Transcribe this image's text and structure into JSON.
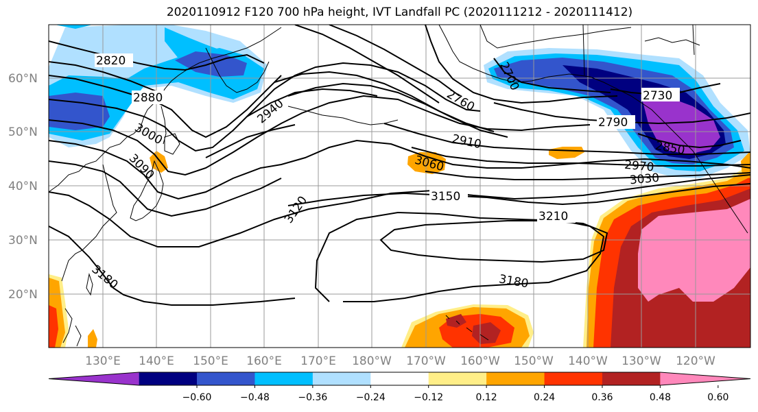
{
  "title": "2020110912 F120 700 hPa height, IVT Landfall PC (2020111212 - 2020111412)",
  "lat_ticks": [
    "60°N",
    "50°N",
    "40°N",
    "30°N",
    "20°N"
  ],
  "lon_ticks": [
    "130°E",
    "140°E",
    "150°E",
    "160°E",
    "170°E",
    "180°W",
    "170°W",
    "160°W",
    "150°W",
    "140°W",
    "130°W",
    "120°W"
  ],
  "colorbar": {
    "colors": [
      "#9933cc",
      "#000080",
      "#3355cc",
      "#00bfff",
      "#b0e0ff",
      "#ffffff",
      "#ffee88",
      "#ffa500",
      "#ff3300",
      "#b22222",
      "#ff88bb"
    ],
    "ticks": [
      "−0.60",
      "−0.48",
      "−0.36",
      "−0.24",
      "−0.12",
      "0.12",
      "0.24",
      "0.36",
      "0.48",
      "0.60"
    ]
  },
  "contour_labels": [
    "2820",
    "2880",
    "2940",
    "3000",
    "3090",
    "3120",
    "3180",
    "2700",
    "2760",
    "2730",
    "2790",
    "2850",
    "2910",
    "2970",
    "3030",
    "3060",
    "3150",
    "3210",
    "3180"
  ]
}
